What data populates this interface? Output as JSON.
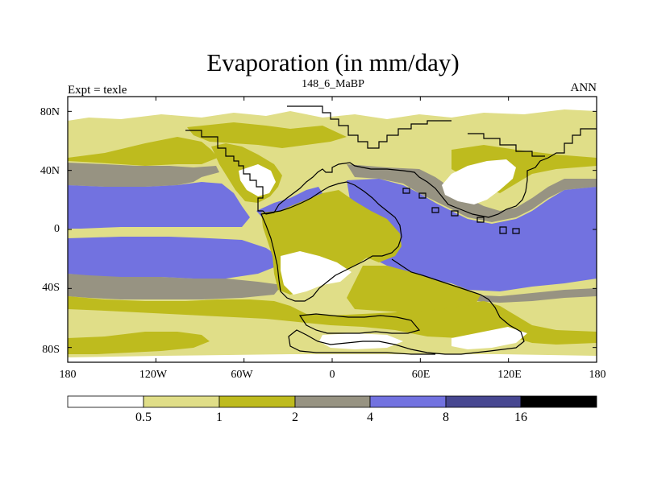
{
  "title": "Evaporation (in mm/day)",
  "subtitle": "148_6_MaBP",
  "left_label": "Expt = texle",
  "right_label": "ANN",
  "colors": {
    "ocean_high": "#7272e0",
    "band_2_4": "#979382",
    "band_1_2": "#bebb1e",
    "band_05_1": "#e0de88",
    "band_lt_05": "#ffffff",
    "band_8_16": "#474791",
    "band_gt_16": "#000000",
    "coast": "#000000"
  },
  "map": {
    "y_ticks": [
      {
        "label": "80N",
        "lat": 80
      },
      {
        "label": "40N",
        "lat": 40
      },
      {
        "label": "0",
        "lat": 0
      },
      {
        "label": "40S",
        "lat": -40
      },
      {
        "label": "80S",
        "lat": -80
      }
    ],
    "x_ticks": [
      {
        "label": "180",
        "lon": -180
      },
      {
        "label": "120W",
        "lon": -120
      },
      {
        "label": "60W",
        "lon": -60
      },
      {
        "label": "0",
        "lon": 0
      },
      {
        "label": "60E",
        "lon": 60
      },
      {
        "label": "120E",
        "lon": 120
      },
      {
        "label": "180",
        "lon": 180
      }
    ]
  },
  "colorbar": {
    "labels": [
      "0.5",
      "1",
      "2",
      "4",
      "8",
      "16"
    ],
    "colors": [
      "#ffffff",
      "#e0de88",
      "#bebb1e",
      "#979382",
      "#7272e0",
      "#474791",
      "#000000"
    ]
  }
}
